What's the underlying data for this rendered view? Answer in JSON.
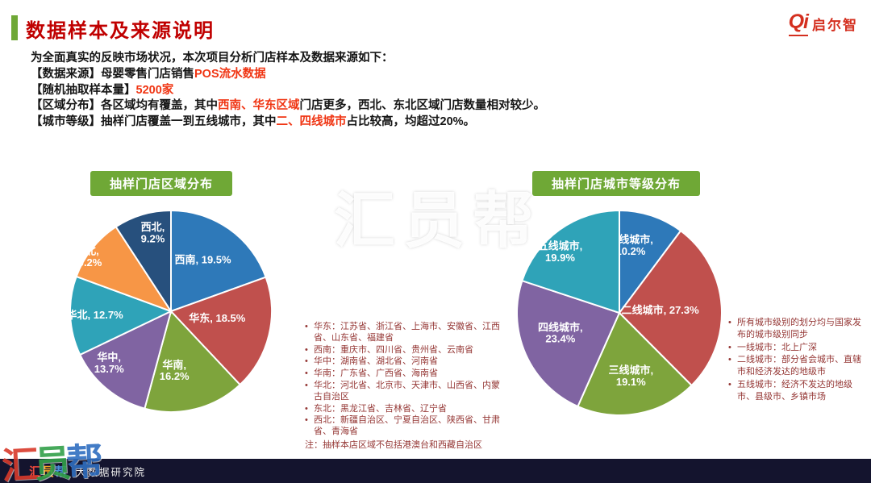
{
  "page": {
    "title": "数据样本及来源说明",
    "logo_mark": "Qi",
    "logo_text": "启尔智"
  },
  "theme": {
    "title_red": "#C00000",
    "highlight_red": "#F03513",
    "badge_green": "#6FA836",
    "note_text": "#953735",
    "footer_bg": "#14142E",
    "logo_red": "#D42F1F"
  },
  "intro": {
    "lines": [
      [
        {
          "t": "为全面真实的反映市场状况，本次项目分析门店样本及数据来源如下："
        }
      ],
      [
        {
          "t": "【数据来源】母婴零售门店销售"
        },
        {
          "t": "POS流水数据",
          "red": true
        }
      ],
      [
        {
          "t": "【随机抽取样本量】"
        },
        {
          "t": "5200家",
          "red": true
        }
      ],
      [
        {
          "t": "【区域分布】各区域均有覆盖，其中"
        },
        {
          "t": "西南、华东区域",
          "red": true
        },
        {
          "t": "门店更多，西北、东北区域门店数量相对较少。"
        }
      ],
      [
        {
          "t": "【城市等级】抽样门店覆盖一到五线城市，其中"
        },
        {
          "t": "二、四线城市",
          "red": true
        },
        {
          "t": "占比较高，均超过20%。"
        }
      ]
    ]
  },
  "chart_data": [
    {
      "type": "pie",
      "title": "抽样门店区域分布",
      "labels": [
        "西南",
        "华东",
        "华南",
        "华中",
        "华北",
        "东北",
        "西北"
      ],
      "values": [
        19.5,
        18.5,
        16.2,
        13.7,
        12.7,
        10.2,
        9.2
      ],
      "colors": [
        "#2E79B9",
        "#C0504D",
        "#7EA43C",
        "#8064A2",
        "#2FA3B8",
        "#F79646",
        "#27507D"
      ],
      "slice_labels": [
        "西南, 19.5%",
        "华东, 18.5%",
        "华南,\n16.2%",
        "华中,\n13.7%",
        "华北, 12.7%",
        "东北,\n10.2%",
        "西北,\n9.2%"
      ],
      "label_radius": [
        0.55,
        0.57,
        0.6,
        0.66,
        0.74,
        0.88,
        0.8
      ],
      "label_dx": [
        0,
        -12,
        -14,
        -24,
        -2,
        -18,
        6
      ],
      "label_dy": [
        -8,
        -8,
        0,
        0,
        0,
        0,
        -2
      ],
      "start_angle": 0,
      "legend": false,
      "data_labels": "inside"
    },
    {
      "type": "pie",
      "title": "抽样门店城市等级分布",
      "labels": [
        "一线城市",
        "二线城市",
        "三线城市",
        "四线城市",
        "五线城市"
      ],
      "values": [
        10.2,
        27.3,
        19.1,
        23.4,
        19.9
      ],
      "colors": [
        "#2E79B9",
        "#C0504D",
        "#7EA43C",
        "#8064A2",
        "#2FA3B8"
      ],
      "slice_labels": [
        "一线城市,\n10.2%",
        "二线城市, 27.3%",
        "三线城市,\n19.1%",
        "四线城市,\n23.4%",
        "五线城市,\n19.9%"
      ],
      "label_radius": [
        0.7,
        0.4,
        0.62,
        0.63,
        0.8
      ],
      "label_dx": [
        -14,
        0,
        0,
        0,
        -14
      ],
      "label_dy": [
        0,
        0,
        0,
        -8,
        6
      ],
      "start_angle": 0,
      "legend": false,
      "data_labels": "inside"
    }
  ],
  "region_notes": {
    "items": [
      "华东：江苏省、浙江省、上海市、安徽省、江西省、山东省、福建省",
      "西南：重庆市、四川省、贵州省、云南省",
      "华中：湖南省、湖北省、河南省",
      "华南：广东省、广西省、海南省",
      "华北：河北省、北京市、天津市、山西省、内蒙古自治区",
      "东北：黑龙江省、吉林省、辽宁省",
      "西北：新疆自治区、宁夏自治区、陕西省、甘肃省、青海省"
    ],
    "footnote": "注：抽样本店区域不包括港澳台和西藏自治区"
  },
  "city_notes": {
    "items": [
      "所有城市级别的划分均与国家发布的城市级别同步",
      "一线城市：北上广深",
      "二线城市：部分省会城市、直辖市和经济发达的地级市",
      "五线城市：经济不发达的地级市、县级市、乡镇市场"
    ]
  },
  "watermark": {
    "text": "汇员帮"
  },
  "corner_watermark": {
    "chars": [
      {
        "t": "汇",
        "c": "#D93A2B"
      },
      {
        "t": "员",
        "c": "#33A04A"
      },
      {
        "t": "帮",
        "c": "#2F6EC0"
      }
    ]
  },
  "footer": {
    "brand_chars": [
      {
        "t": "汇",
        "c": "#E8483B"
      },
      {
        "t": "员",
        "c": "#F5A623"
      },
      {
        "t": "帮",
        "c": "#4A90D9"
      }
    ],
    "subtitle": "大数据研究院"
  }
}
